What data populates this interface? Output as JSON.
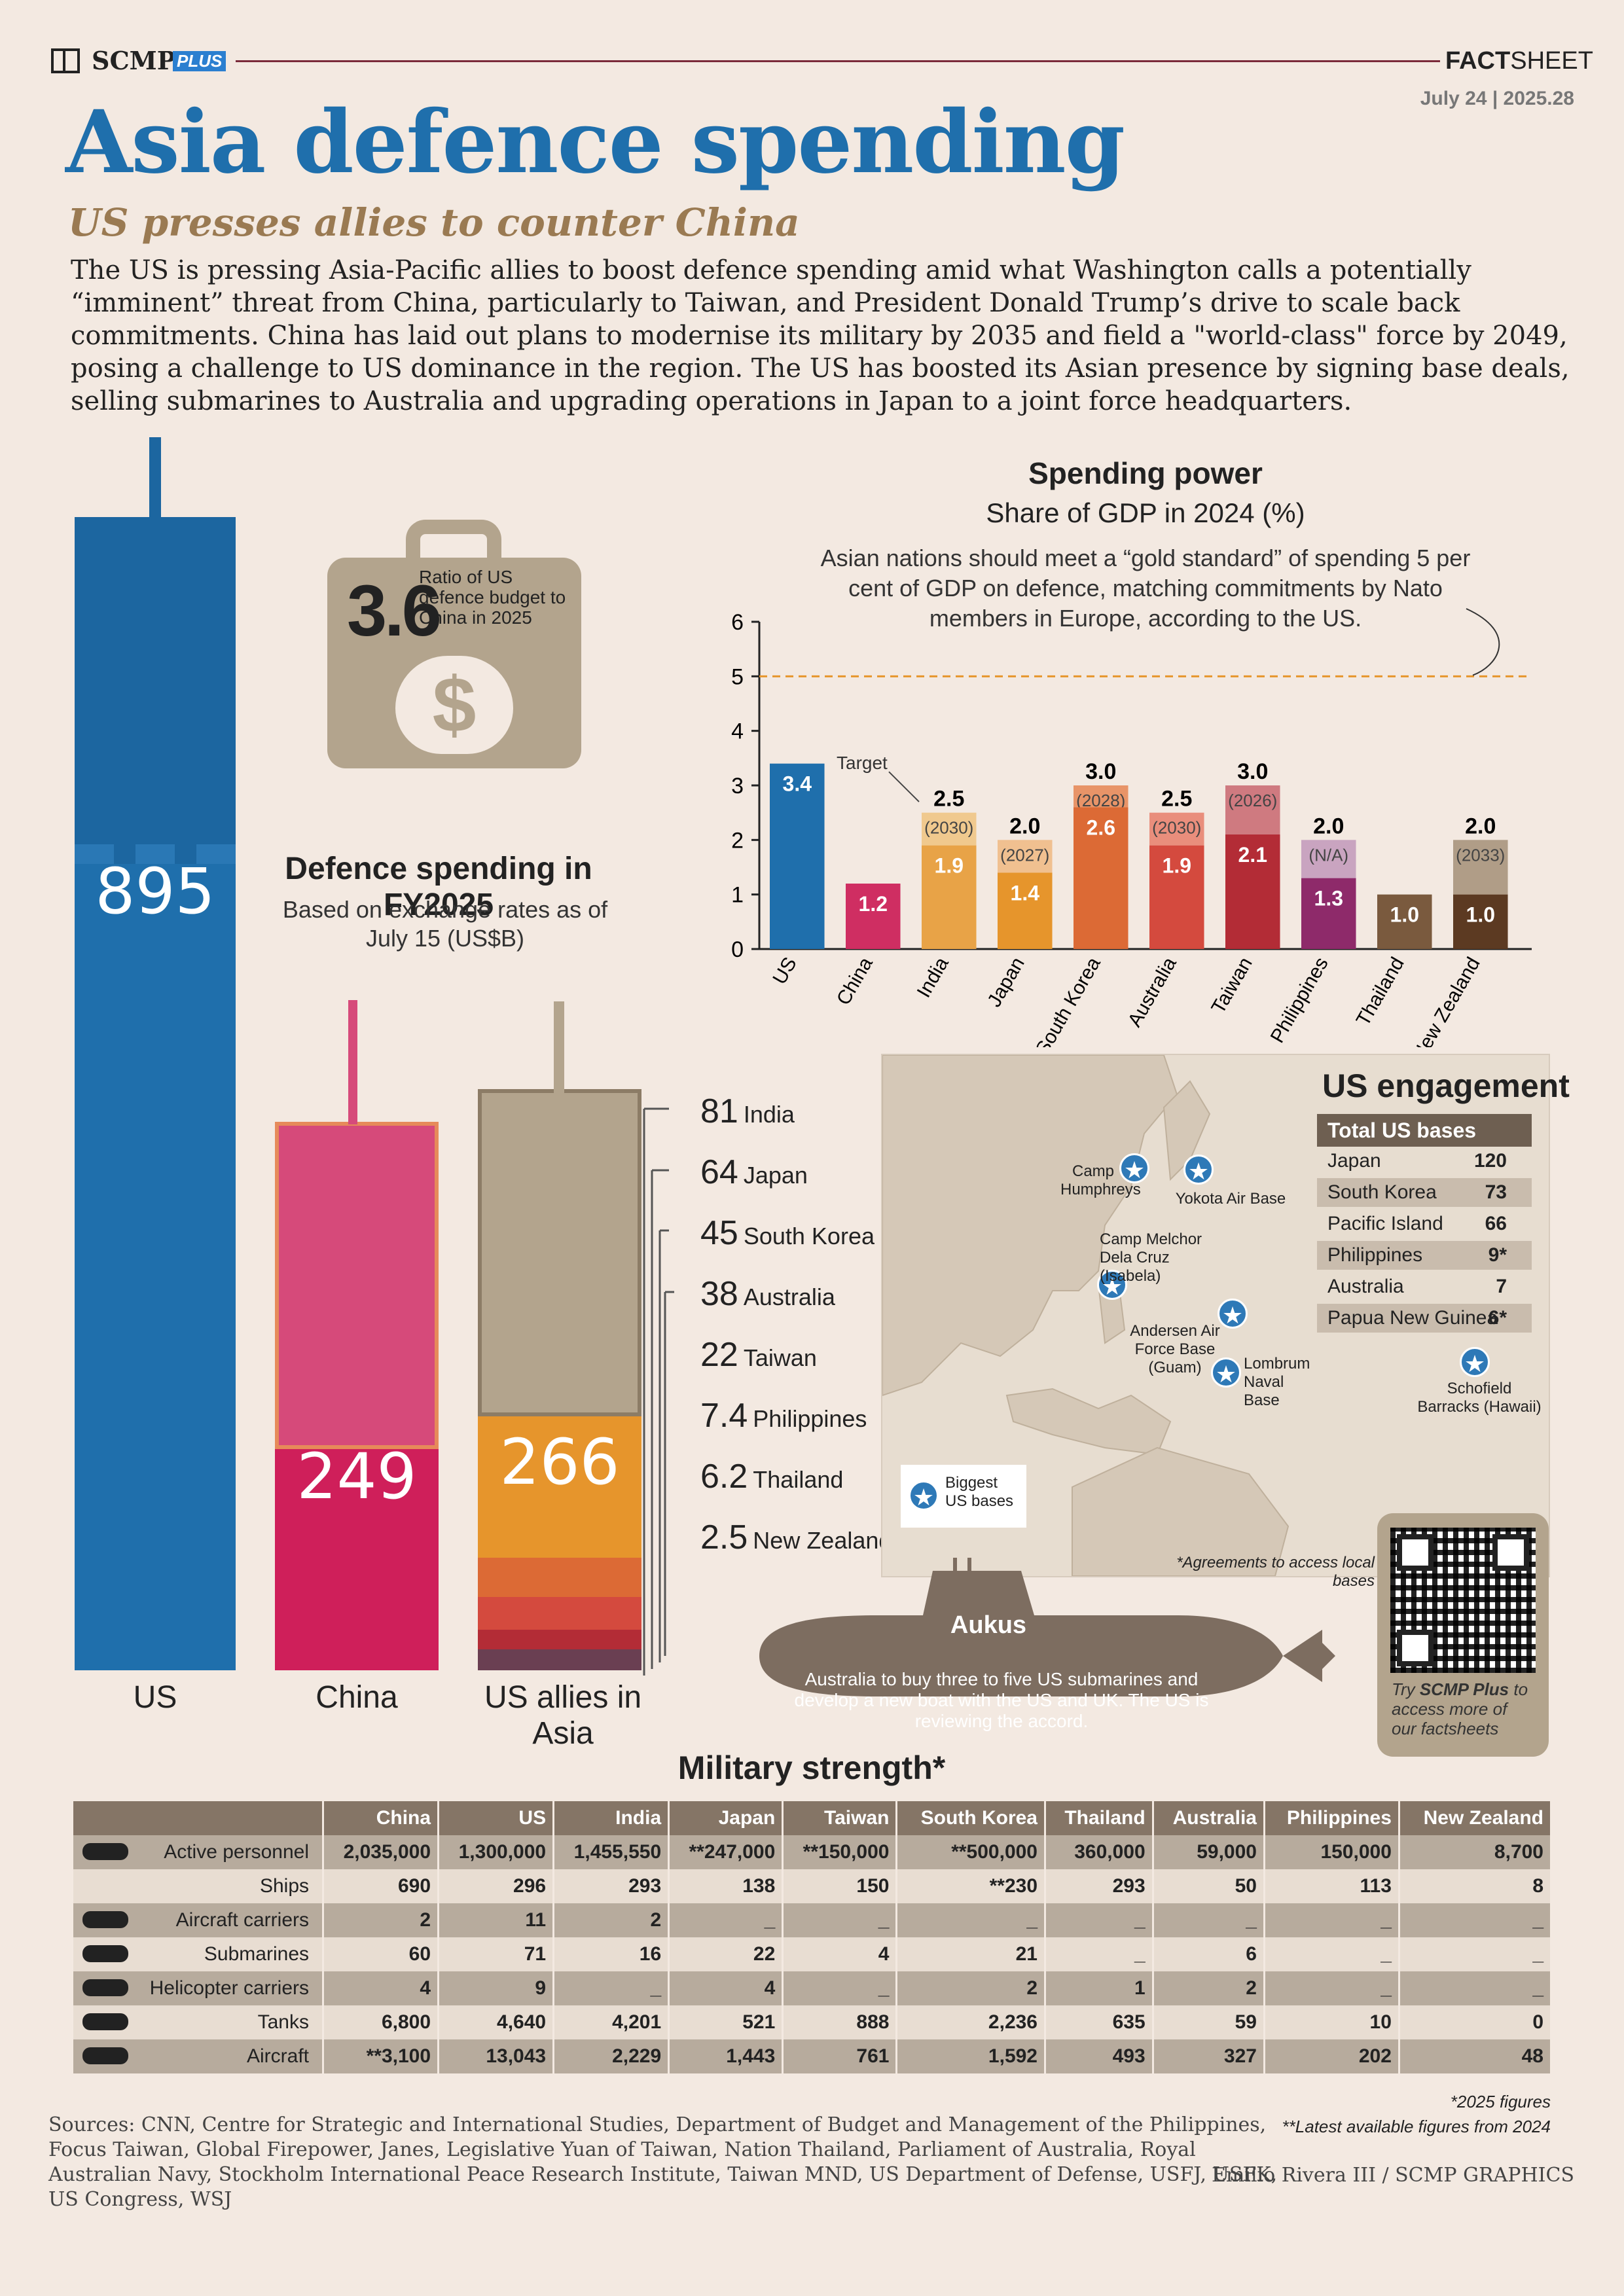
{
  "header": {
    "brand": "SCMP",
    "brand_plus": "PLUS",
    "factsheet_bold": "FACT",
    "factsheet_rest": "SHEET",
    "issue": "July 24 | 2025.28"
  },
  "title": "Asia defence spending",
  "subtitle": "US presses allies to counter China",
  "intro": "The US is pressing Asia-Pacific allies to boost defence spending amid what Washington calls a potentially “imminent” threat from China, particularly to Taiwan, and President Donald Trump’s drive to scale back commitments. China has laid out plans to modernise its military by 2035 and field a \"world-class\" force by 2049, posing a challenge to US dominance in the region. The US has boosted its Asian presence by signing base deals, selling submarines to Australia and upgrading operations in Japan to a joint force headquarters.",
  "ratio": {
    "value": "3.6",
    "text": "Ratio of US defence budget to China in 2025",
    "icon": "dollar-briefcase-icon"
  },
  "fy2025": {
    "title": "Defence spending in FY2025",
    "subtitle": "Based on exchange rates as of July 15 (US$B)"
  },
  "chart_data": [
    {
      "type": "bar",
      "title": "Defence spending in FY2025",
      "subtitle": "Based on exchange rates as of July 15 (US$B)",
      "categories": [
        "US",
        "China",
        "US allies in Asia"
      ],
      "values": [
        895,
        249,
        266
      ],
      "colors": [
        "#1f6fac",
        "#cf1f5a",
        "#e6952c"
      ],
      "allies_breakdown": [
        {
          "name": "India",
          "value": 81,
          "label": "81"
        },
        {
          "name": "Japan",
          "value": 64,
          "label": "64"
        },
        {
          "name": "South Korea",
          "value": 45,
          "label": "45"
        },
        {
          "name": "Australia",
          "value": 38,
          "label": "38"
        },
        {
          "name": "Taiwan",
          "value": 22,
          "label": "22"
        },
        {
          "name": "Philippines",
          "value": 7.4,
          "label": "7.4"
        },
        {
          "name": "Thailand",
          "value": 6.2,
          "label": "6.2"
        },
        {
          "name": "New Zealand",
          "value": 2.5,
          "label": "2.5"
        }
      ]
    },
    {
      "type": "bar",
      "title": "Spending power",
      "subtitle": "Share of GDP in 2024 (%)",
      "note": "Asian nations should meet a “gold standard” of spending 5 per cent of GDP on defence, matching commitments by Nato members in Europe, according to the US.",
      "target_label": "Target",
      "reference_line": 5,
      "ylim": [
        0,
        6
      ],
      "yticks": [
        "0",
        "1",
        "2",
        "3",
        "4",
        "5",
        "6"
      ],
      "categories": [
        "US",
        "China",
        "India",
        "Japan",
        "South Korea",
        "Australia",
        "Taiwan",
        "Philippines",
        "Thailand",
        "New Zealand"
      ],
      "values": [
        3.4,
        1.2,
        1.9,
        1.4,
        2.6,
        1.9,
        2.1,
        1.3,
        1.0,
        1.0
      ],
      "value_labels": [
        "3.4",
        "1.2",
        "1.9",
        "1.4",
        "2.6",
        "1.9",
        "2.1",
        "1.3",
        "1.0",
        "1.0"
      ],
      "targets": [
        null,
        null,
        2.5,
        2.0,
        3.0,
        2.5,
        3.0,
        2.0,
        null,
        2.0
      ],
      "target_labels": [
        "",
        "",
        "2.5",
        "2.0",
        "3.0",
        "2.5",
        "3.0",
        "2.0",
        "",
        "2.0"
      ],
      "target_years": [
        "",
        "",
        "(2030)",
        "(2027)",
        "(2028)",
        "(2030)",
        "(2026)",
        "(N/A)",
        "",
        "(2033)"
      ],
      "colors": [
        "#1f6fac",
        "#cf2e62",
        "#e8a347",
        "#e6952c",
        "#dc6a35",
        "#d44a3e",
        "#b32c36",
        "#8e2a6a",
        "#7a5a3e",
        "#5c3a22"
      ],
      "target_colors": [
        "",
        "",
        "#f0c98e",
        "#f0c090",
        "#e89468",
        "#e98e7c",
        "#cf7a80",
        "#c9a4c0",
        "",
        "#b09d87"
      ]
    }
  ],
  "engagement": {
    "title": "US engagement",
    "table_header": "Total US bases",
    "rows": [
      {
        "name": "Japan",
        "value": "120"
      },
      {
        "name": "South Korea",
        "value": "73"
      },
      {
        "name": "Pacific Island",
        "value": "66"
      },
      {
        "name": "Philippines",
        "value": "9*"
      },
      {
        "name": "Australia",
        "value": "7"
      },
      {
        "name": "Papua New Guinea",
        "value": "6*"
      }
    ],
    "bases": [
      "Camp Humphreys",
      "Yokota Air Base",
      "Camp Melchor Dela Cruz (Isabela)",
      "Andersen Air Force Base (Guam)",
      "Lombrum Naval Base",
      "Schofield Barracks (Hawaii)"
    ],
    "legend": "Biggest US bases",
    "footnote": "*Agreements to access local bases"
  },
  "qr": {
    "text_prefix": "Try ",
    "text_bold": "SCMP Plus",
    "text_rest": " to access more of our factsheets"
  },
  "aukus": {
    "title": "Aukus",
    "text": "Australia to buy three to five US submarines and develop a new boat with the US and UK. The US is reviewing the accord."
  },
  "military": {
    "title": "Military strength*",
    "columns": [
      "China",
      "US",
      "India",
      "Japan",
      "Taiwan",
      "South Korea",
      "Thailand",
      "Australia",
      "Philippines",
      "New Zealand"
    ],
    "rows": [
      {
        "label": "Active personnel",
        "icon": "soldier-icon",
        "values": [
          "2,035,000",
          "1,300,000",
          "1,455,550",
          "**247,000",
          "**150,000",
          "**500,000",
          "360,000",
          "59,000",
          "150,000",
          "8,700"
        ]
      },
      {
        "label": "Ships",
        "icon": "",
        "values": [
          "690",
          "296",
          "293",
          "138",
          "150",
          "**230",
          "293",
          "50",
          "113",
          "8"
        ]
      },
      {
        "label": "Aircraft carriers",
        "icon": "aircraft-carrier-icon",
        "values": [
          "2",
          "11",
          "2",
          "_",
          "_",
          "_",
          "_",
          "_",
          "_",
          "_"
        ]
      },
      {
        "label": "Submarines",
        "icon": "submarine-icon",
        "values": [
          "60",
          "71",
          "16",
          "22",
          "4",
          "21",
          "_",
          "6",
          "_",
          "_"
        ]
      },
      {
        "label": "Helicopter carriers",
        "icon": "helicopter-icon",
        "values": [
          "4",
          "9",
          "_",
          "4",
          "_",
          "2",
          "1",
          "2",
          "_",
          "_"
        ]
      },
      {
        "label": "Tanks",
        "icon": "tank-icon",
        "values": [
          "6,800",
          "4,640",
          "4,201",
          "521",
          "888",
          "2,236",
          "635",
          "59",
          "10",
          "0"
        ]
      },
      {
        "label": "Aircraft",
        "icon": "fighter-jet-icon",
        "values": [
          "**3,100",
          "13,043",
          "2,229",
          "1,443",
          "761",
          "1,592",
          "493",
          "327",
          "202",
          "48"
        ]
      }
    ],
    "note1": "*2025 figures",
    "note2": "**Latest available figures from 2024"
  },
  "sources": "Sources: CNN, Centre for Strategic and International Studies, Department of Budget and Management of the Philippines, Focus Taiwan, Global Firepower, Janes, Legislative Yuan of Taiwan, Nation Thailand, Parliament of Australia, Royal Australian Navy, Stockholm International Peace Research Institute, Taiwan MND, US Department of Defense, USFJ, USFK, US Congress, WSJ",
  "credit": "Emilio Rivera III / SCMP GRAPHICS"
}
